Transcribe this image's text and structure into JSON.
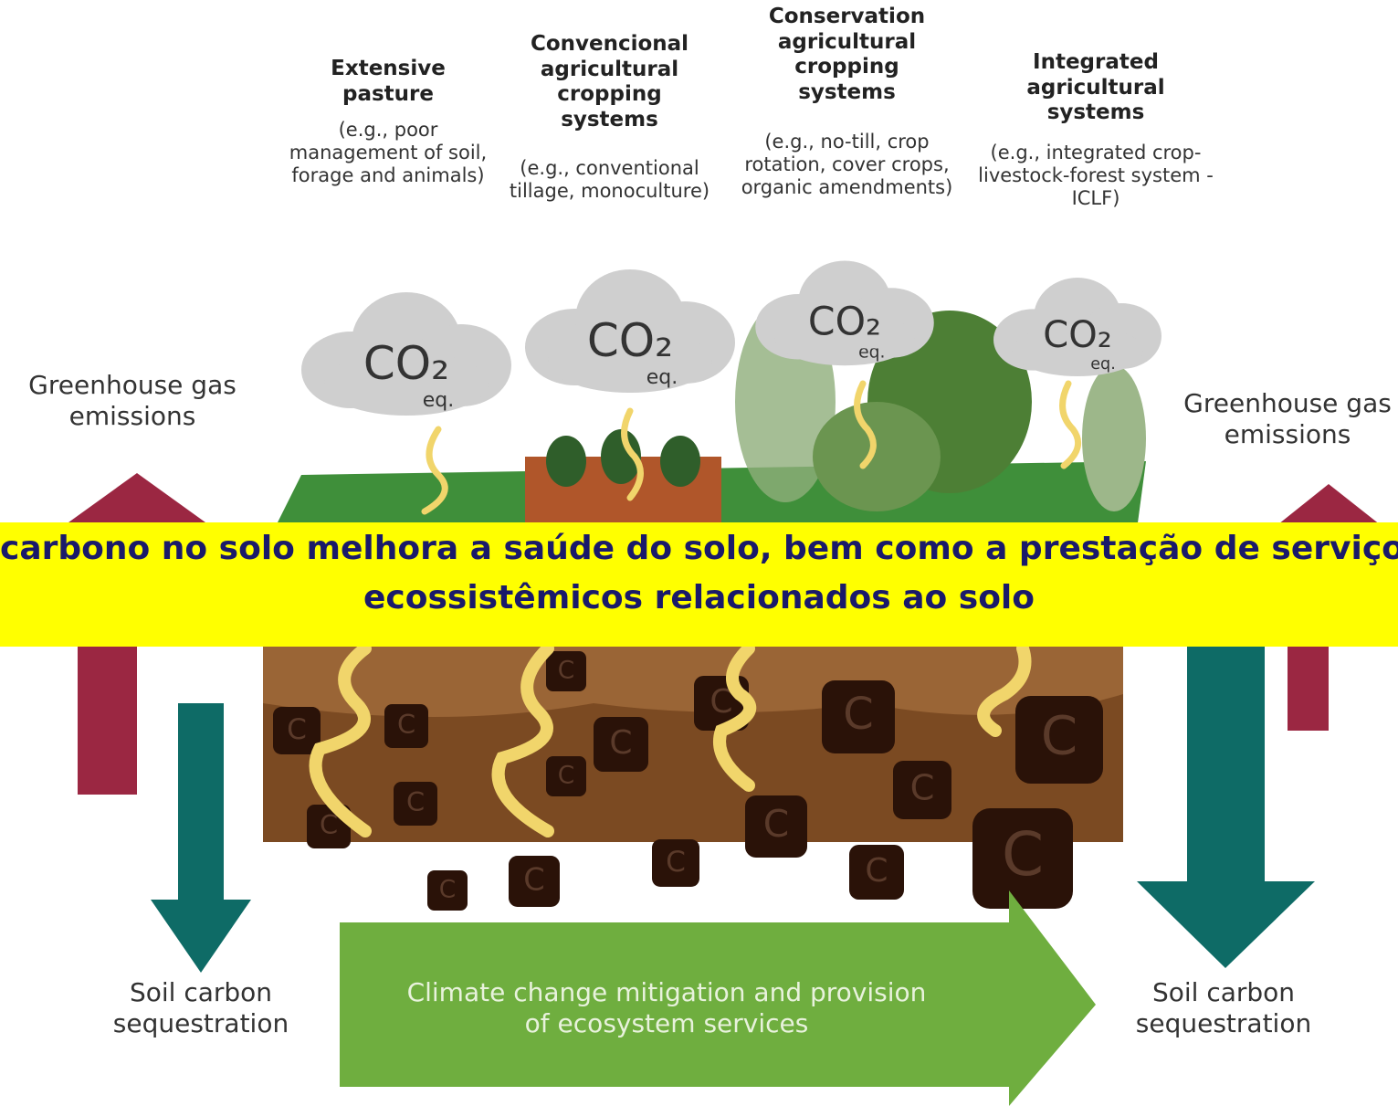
{
  "systems": [
    {
      "title": "Extensive pasture",
      "description": "(e.g., poor management of soil, forage and animals)"
    },
    {
      "title": "Convencional agricultural cropping systems",
      "description": "(e.g., conventional tillage, monoculture)"
    },
    {
      "title": "Conservation agricultural cropping systems",
      "description": "(e.g., no-till, crop rotation, cover crops, organic amendments)"
    },
    {
      "title": "Integrated agricultural systems",
      "description": "(e.g., integrated crop-livestock-forest system - ICLF)"
    }
  ],
  "cloud": {
    "label": "CO₂",
    "unit": "eq."
  },
  "left": {
    "emissions": "Greenhouse gas emissions",
    "sequestration": "Soil carbon sequestration"
  },
  "right": {
    "emissions": "Greenhouse gas emissions",
    "sequestration": "Soil carbon sequestration"
  },
  "soil_carbon": "C",
  "bottom_arrow": "Climate change mitigation and provision of ecosystem services",
  "banner": {
    "line1": "carbono no solo melhora a saúde do solo, bem como a prestação de serviços",
    "line2": "ecossistêmicos relacionados ao solo"
  }
}
